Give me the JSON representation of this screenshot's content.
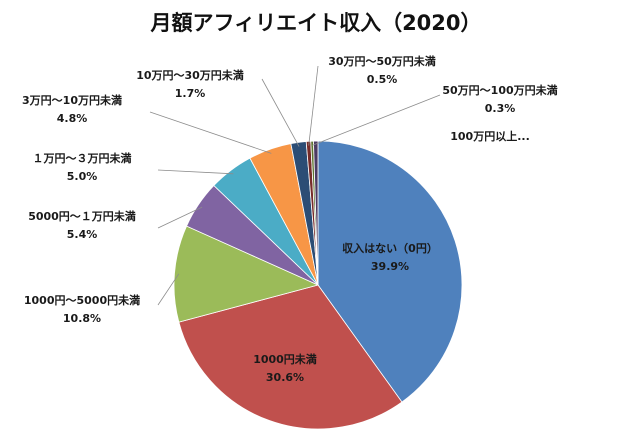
{
  "chart_data": {
    "type": "pie",
    "title": "月額アフィリエイト収入（2020）",
    "unit": "%",
    "slices": [
      {
        "label": "収入はない（0円）",
        "value": 39.9,
        "display": "39.9%",
        "color": "#4F81BD"
      },
      {
        "label": "1000円未満",
        "value": 30.6,
        "display": "30.6%",
        "color": "#C0504D"
      },
      {
        "label": "1000円～5000円未満",
        "value": 10.8,
        "display": "10.8%",
        "color": "#9BBB59"
      },
      {
        "label": "5000円～１万円未満",
        "value": 5.4,
        "display": "5.4%",
        "color": "#8064A2"
      },
      {
        "label": "１万円～３万円未満",
        "value": 5.0,
        "display": "5.0%",
        "color": "#4BACC6"
      },
      {
        "label": "3万円～10万円未満",
        "value": 4.8,
        "display": "4.8%",
        "color": "#F79646"
      },
      {
        "label": "10万円～30万円未満",
        "value": 1.7,
        "display": "1.7%",
        "color": "#2C4D75"
      },
      {
        "label": "30万円～50万円未満",
        "value": 0.5,
        "display": "0.5%",
        "color": "#772C2A"
      },
      {
        "label": "50万円～100万円未満",
        "value": 0.3,
        "display": "0.3%",
        "color": "#5F7530"
      },
      {
        "label": "100万円以上...",
        "value": 0.5,
        "display": "",
        "color": "#4D3B62"
      }
    ]
  }
}
